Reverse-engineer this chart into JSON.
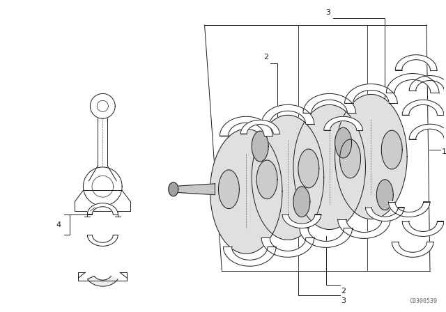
{
  "background_color": "#ffffff",
  "line_color": "#1a1a1a",
  "figure_width": 6.4,
  "figure_height": 4.48,
  "dpi": 100,
  "watermark": "C0300539",
  "line_width": 0.7
}
